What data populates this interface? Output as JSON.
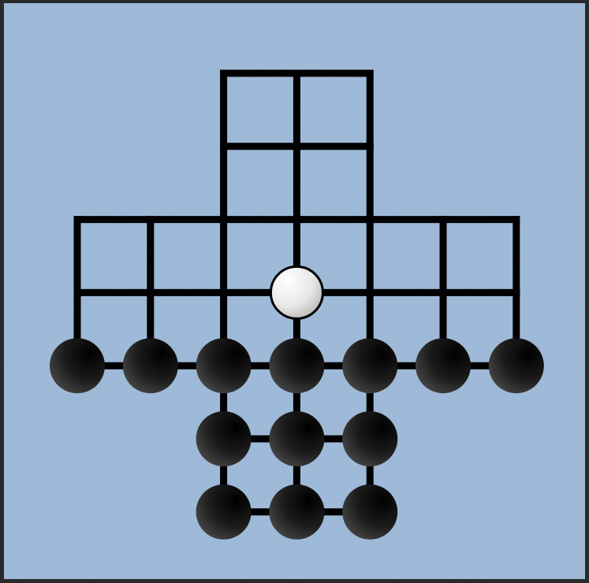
{
  "game": {
    "type": "peg-solitaire-board",
    "colors": {
      "background": "#9ab6d6",
      "lines": "#000000",
      "black_piece": "#1a1a1a",
      "white_piece": "#f2f2f2"
    },
    "grid": {
      "columns": [
        "c0",
        "c1",
        "c2",
        "c3",
        "c4",
        "c5",
        "c6"
      ],
      "rows": [
        "r0",
        "r1",
        "r2",
        "r3",
        "r4",
        "r5",
        "r6"
      ]
    },
    "points": [
      {
        "col": 2,
        "row": 0
      },
      {
        "col": 3,
        "row": 0
      },
      {
        "col": 4,
        "row": 0
      },
      {
        "col": 2,
        "row": 1
      },
      {
        "col": 3,
        "row": 1
      },
      {
        "col": 4,
        "row": 1
      },
      {
        "col": 0,
        "row": 2
      },
      {
        "col": 1,
        "row": 2
      },
      {
        "col": 2,
        "row": 2
      },
      {
        "col": 3,
        "row": 2
      },
      {
        "col": 4,
        "row": 2
      },
      {
        "col": 5,
        "row": 2
      },
      {
        "col": 6,
        "row": 2
      },
      {
        "col": 0,
        "row": 3
      },
      {
        "col": 1,
        "row": 3
      },
      {
        "col": 2,
        "row": 3
      },
      {
        "col": 3,
        "row": 3
      },
      {
        "col": 4,
        "row": 3
      },
      {
        "col": 5,
        "row": 3
      },
      {
        "col": 6,
        "row": 3
      },
      {
        "col": 0,
        "row": 4
      },
      {
        "col": 1,
        "row": 4
      },
      {
        "col": 2,
        "row": 4
      },
      {
        "col": 3,
        "row": 4
      },
      {
        "col": 4,
        "row": 4
      },
      {
        "col": 5,
        "row": 4
      },
      {
        "col": 6,
        "row": 4
      },
      {
        "col": 2,
        "row": 5
      },
      {
        "col": 3,
        "row": 5
      },
      {
        "col": 4,
        "row": 5
      },
      {
        "col": 2,
        "row": 6
      },
      {
        "col": 3,
        "row": 6
      },
      {
        "col": 4,
        "row": 6
      }
    ],
    "pieces": [
      {
        "col": 3,
        "row": 3,
        "color": "white"
      },
      {
        "col": 0,
        "row": 4,
        "color": "black"
      },
      {
        "col": 1,
        "row": 4,
        "color": "black"
      },
      {
        "col": 2,
        "row": 4,
        "color": "black"
      },
      {
        "col": 3,
        "row": 4,
        "color": "black"
      },
      {
        "col": 4,
        "row": 4,
        "color": "black"
      },
      {
        "col": 5,
        "row": 4,
        "color": "black"
      },
      {
        "col": 6,
        "row": 4,
        "color": "black"
      },
      {
        "col": 2,
        "row": 5,
        "color": "black"
      },
      {
        "col": 3,
        "row": 5,
        "color": "black"
      },
      {
        "col": 4,
        "row": 5,
        "color": "black"
      },
      {
        "col": 2,
        "row": 6,
        "color": "black"
      },
      {
        "col": 3,
        "row": 6,
        "color": "black"
      },
      {
        "col": 4,
        "row": 6,
        "color": "black"
      }
    ]
  }
}
